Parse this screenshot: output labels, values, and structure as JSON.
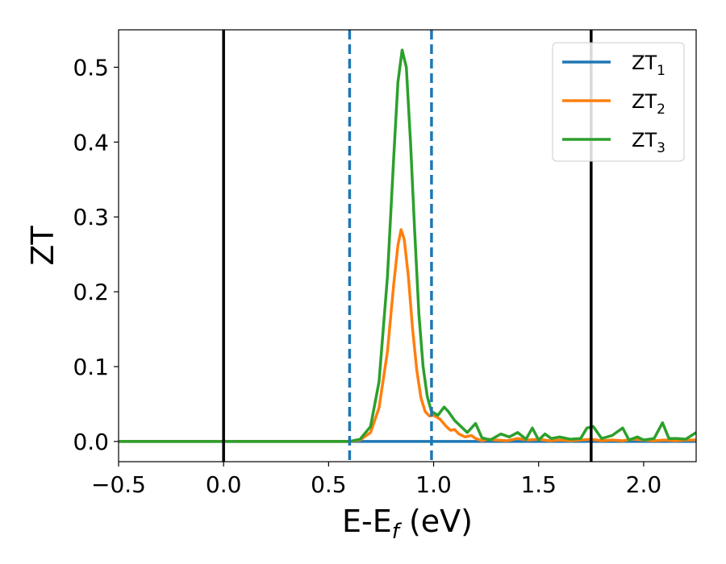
{
  "chart_data": {
    "type": "line",
    "xlabel_main": "E-E",
    "xlabel_sub": "f",
    "xlabel_rest": " (eV)",
    "ylabel": "ZT",
    "xlim": [
      -0.5,
      2.25
    ],
    "ylim": [
      -0.027,
      0.55
    ],
    "x_ticks": [
      -0.5,
      0.0,
      0.5,
      1.0,
      1.5,
      2.0
    ],
    "x_tick_labels": [
      "−0.5",
      "0.0",
      "0.5",
      "1.0",
      "1.5",
      "2.0"
    ],
    "y_ticks": [
      0.0,
      0.1,
      0.2,
      0.3,
      0.4,
      0.5
    ],
    "y_tick_labels": [
      "0.0",
      "0.1",
      "0.2",
      "0.3",
      "0.4",
      "0.5"
    ],
    "grid": false,
    "legend_position": "top-right",
    "vlines_solid": [
      0.0,
      1.75
    ],
    "vlines_dashed": [
      0.6,
      0.99
    ],
    "series": [
      {
        "name": "ZT",
        "sub": "1",
        "color": "#1f77b4",
        "x": [
          -0.5,
          0.0,
          0.5,
          1.0,
          1.5,
          2.0,
          2.25
        ],
        "y": [
          0.0,
          0.0,
          0.0,
          0.0,
          0.0,
          0.0,
          0.0
        ]
      },
      {
        "name": "ZT",
        "sub": "2",
        "color": "#ff7f0e",
        "x": [
          -0.5,
          0.0,
          0.5,
          0.6,
          0.65,
          0.7,
          0.74,
          0.78,
          0.81,
          0.83,
          0.845,
          0.86,
          0.88,
          0.9,
          0.92,
          0.94,
          0.96,
          0.98,
          1.0,
          1.03,
          1.06,
          1.08,
          1.1,
          1.12,
          1.15,
          1.18,
          1.2,
          1.23,
          1.26,
          1.3,
          1.35,
          1.4,
          1.45,
          1.5,
          1.55,
          1.6,
          1.65,
          1.7,
          1.75,
          1.8,
          1.85,
          1.9,
          1.95,
          2.0,
          2.05,
          2.1,
          2.15,
          2.2,
          2.25
        ],
        "y": [
          0.0,
          0.0,
          0.0,
          0.0,
          0.002,
          0.012,
          0.045,
          0.12,
          0.21,
          0.262,
          0.283,
          0.27,
          0.22,
          0.15,
          0.095,
          0.058,
          0.04,
          0.034,
          0.035,
          0.03,
          0.02,
          0.015,
          0.016,
          0.01,
          0.006,
          0.008,
          0.004,
          0.001,
          0.003,
          0.002,
          0.001,
          0.004,
          0.002,
          0.003,
          0.001,
          0.002,
          0.001,
          0.002,
          0.003,
          0.001,
          0.002,
          0.001,
          0.003,
          0.002,
          0.001,
          0.002,
          0.001,
          0.002,
          0.002
        ]
      },
      {
        "name": "ZT",
        "sub": "3",
        "color": "#2ca02c",
        "x": [
          -0.5,
          0.0,
          0.5,
          0.6,
          0.65,
          0.7,
          0.74,
          0.78,
          0.81,
          0.83,
          0.85,
          0.87,
          0.89,
          0.91,
          0.93,
          0.95,
          0.97,
          0.99,
          1.02,
          1.05,
          1.07,
          1.1,
          1.13,
          1.16,
          1.2,
          1.23,
          1.27,
          1.32,
          1.36,
          1.4,
          1.44,
          1.47,
          1.5,
          1.53,
          1.56,
          1.6,
          1.65,
          1.7,
          1.73,
          1.76,
          1.8,
          1.85,
          1.9,
          1.93,
          1.97,
          2.0,
          2.05,
          2.09,
          2.12,
          2.16,
          2.2,
          2.25
        ],
        "y": [
          0.0,
          0.0,
          0.0,
          0.0,
          0.003,
          0.02,
          0.08,
          0.22,
          0.38,
          0.48,
          0.523,
          0.5,
          0.4,
          0.28,
          0.17,
          0.1,
          0.06,
          0.04,
          0.035,
          0.046,
          0.04,
          0.028,
          0.02,
          0.012,
          0.024,
          0.005,
          0.002,
          0.01,
          0.006,
          0.012,
          0.003,
          0.018,
          0.002,
          0.01,
          0.004,
          0.006,
          0.003,
          0.004,
          0.018,
          0.02,
          0.004,
          0.008,
          0.018,
          0.002,
          0.006,
          0.002,
          0.004,
          0.025,
          0.004,
          0.004,
          0.003,
          0.012
        ]
      }
    ]
  }
}
